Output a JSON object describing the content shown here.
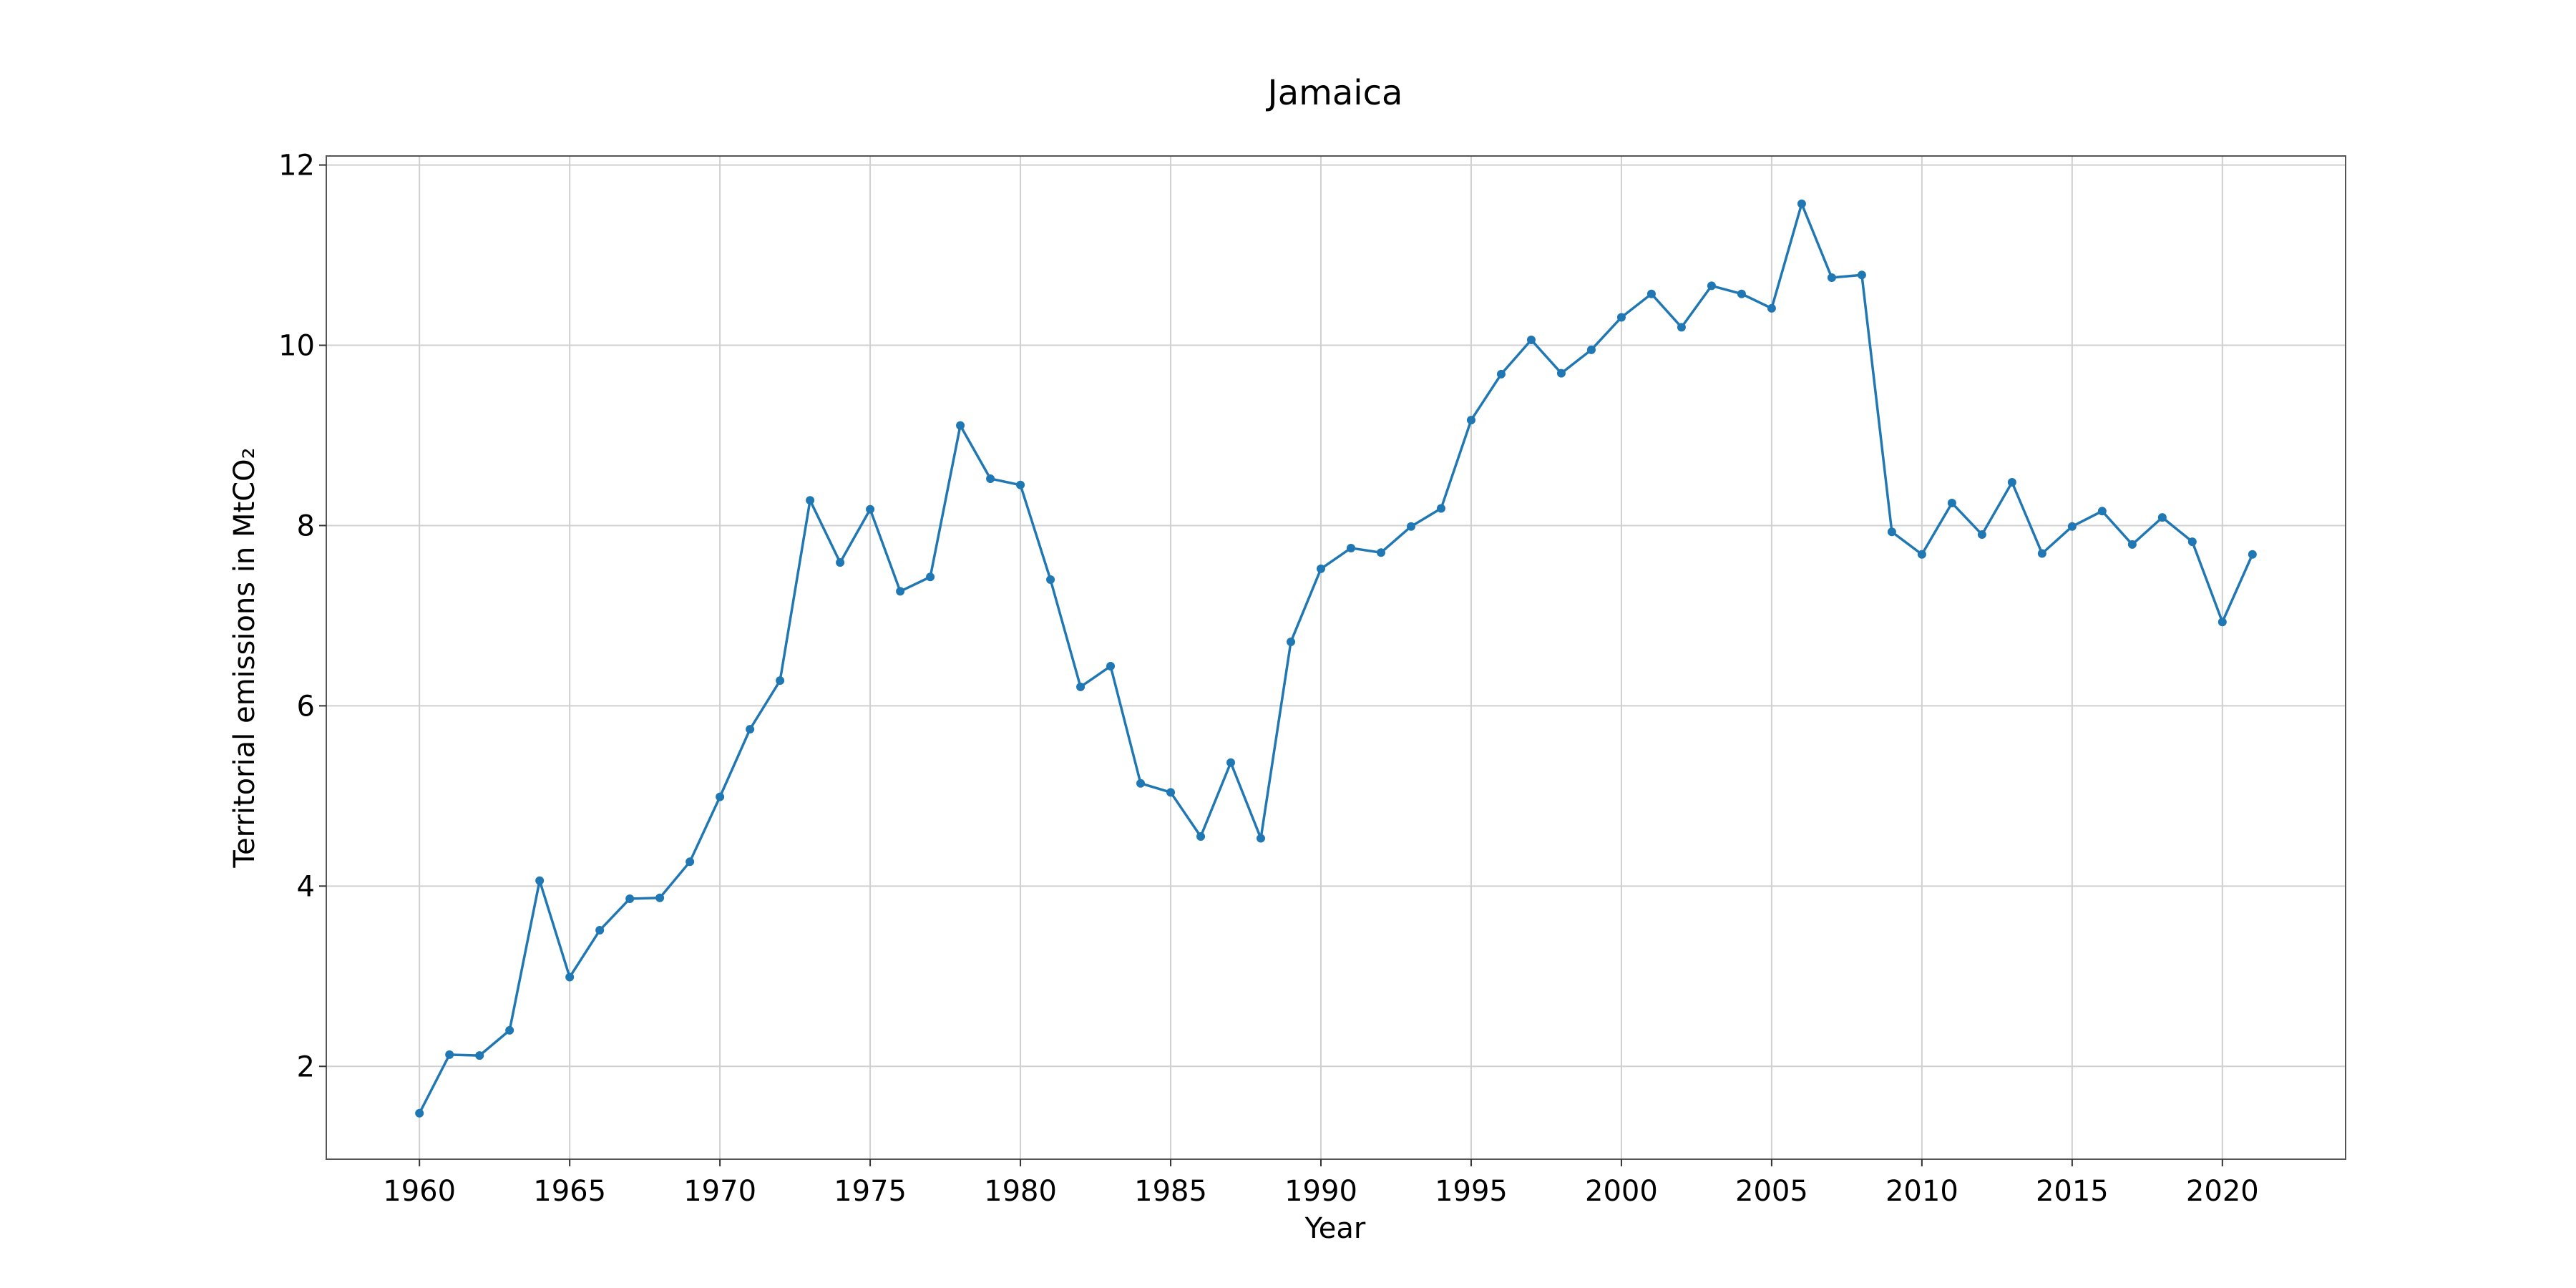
{
  "chart_data": {
    "type": "line",
    "title": "Jamaica",
    "xlabel": "Year",
    "ylabel": "Territorial emissions in MtCO₂",
    "xlim": [
      1956.9,
      2024.1
    ],
    "ylim": [
      0.97,
      12.1
    ],
    "x_ticks": [
      1960,
      1965,
      1970,
      1975,
      1980,
      1985,
      1990,
      1995,
      2000,
      2005,
      2010,
      2015,
      2020
    ],
    "y_ticks": [
      2,
      4,
      6,
      8,
      10,
      12
    ],
    "x_tick_labels": [
      "1960",
      "1965",
      "1970",
      "1975",
      "1980",
      "1985",
      "1990",
      "1995",
      "2000",
      "2005",
      "2010",
      "2015",
      "2020"
    ],
    "y_tick_labels": [
      "2",
      "4",
      "6",
      "8",
      "10",
      "12"
    ],
    "grid": true,
    "legend": "none",
    "series": [
      {
        "color": "#1f77b4",
        "x": [
          1960,
          1961,
          1962,
          1963,
          1964,
          1965,
          1966,
          1967,
          1968,
          1969,
          1970,
          1971,
          1972,
          1973,
          1974,
          1975,
          1976,
          1977,
          1978,
          1979,
          1980,
          1981,
          1982,
          1983,
          1984,
          1985,
          1986,
          1987,
          1988,
          1989,
          1990,
          1991,
          1992,
          1993,
          1994,
          1995,
          1996,
          1997,
          1998,
          1999,
          2000,
          2001,
          2002,
          2003,
          2004,
          2005,
          2006,
          2007,
          2008,
          2009,
          2010,
          2011,
          2012,
          2013,
          2014,
          2015,
          2016,
          2017,
          2018,
          2019,
          2020,
          2021
        ],
        "y": [
          1.48,
          2.13,
          2.12,
          2.4,
          4.06,
          2.99,
          3.51,
          3.86,
          3.87,
          4.27,
          4.99,
          5.74,
          6.28,
          8.28,
          7.59,
          8.18,
          7.27,
          7.43,
          9.11,
          8.52,
          8.45,
          7.4,
          6.21,
          6.44,
          5.14,
          5.04,
          4.55,
          5.37,
          4.53,
          6.71,
          7.52,
          7.75,
          7.7,
          7.99,
          8.19,
          9.17,
          9.68,
          10.06,
          9.69,
          9.95,
          10.31,
          10.57,
          10.2,
          10.66,
          10.57,
          10.41,
          11.57,
          10.75,
          10.78,
          7.93,
          7.68,
          8.25,
          7.9,
          8.48,
          7.69,
          7.99,
          8.16,
          7.79,
          8.09,
          7.82,
          6.93,
          7.68
        ]
      }
    ]
  }
}
